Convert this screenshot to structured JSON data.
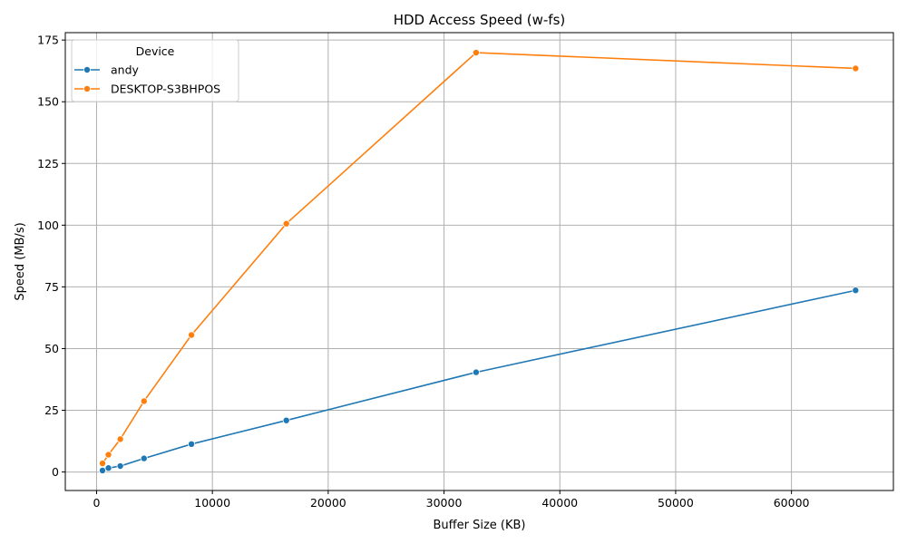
{
  "chart_data": {
    "type": "line",
    "title": "HDD Access Speed (w-fs)",
    "xlabel": "Buffer Size (KB)",
    "ylabel": "Speed (MB/s)",
    "xlim": [
      -2700,
      68800
    ],
    "ylim": [
      -7.5,
      178
    ],
    "x_ticks": [
      0,
      10000,
      20000,
      30000,
      40000,
      50000,
      60000
    ],
    "y_ticks": [
      0,
      25,
      50,
      75,
      100,
      125,
      150,
      175
    ],
    "grid": true,
    "legend": {
      "title": "Device",
      "placement": "top-left"
    },
    "series": [
      {
        "name": "andy",
        "color": "#1f77b4",
        "x": [
          512,
          1024,
          2048,
          4096,
          8192,
          16384,
          32768,
          65536
        ],
        "y": [
          0.6,
          1.6,
          2.4,
          5.5,
          11.3,
          20.9,
          40.4,
          73.6
        ]
      },
      {
        "name": "DESKTOP-S3BHPOS",
        "color": "#ff7f0e",
        "x": [
          512,
          1024,
          2048,
          4096,
          8192,
          16384,
          32768,
          65536
        ],
        "y": [
          3.5,
          7.0,
          13.3,
          28.7,
          55.5,
          100.6,
          169.9,
          163.5
        ]
      }
    ]
  }
}
